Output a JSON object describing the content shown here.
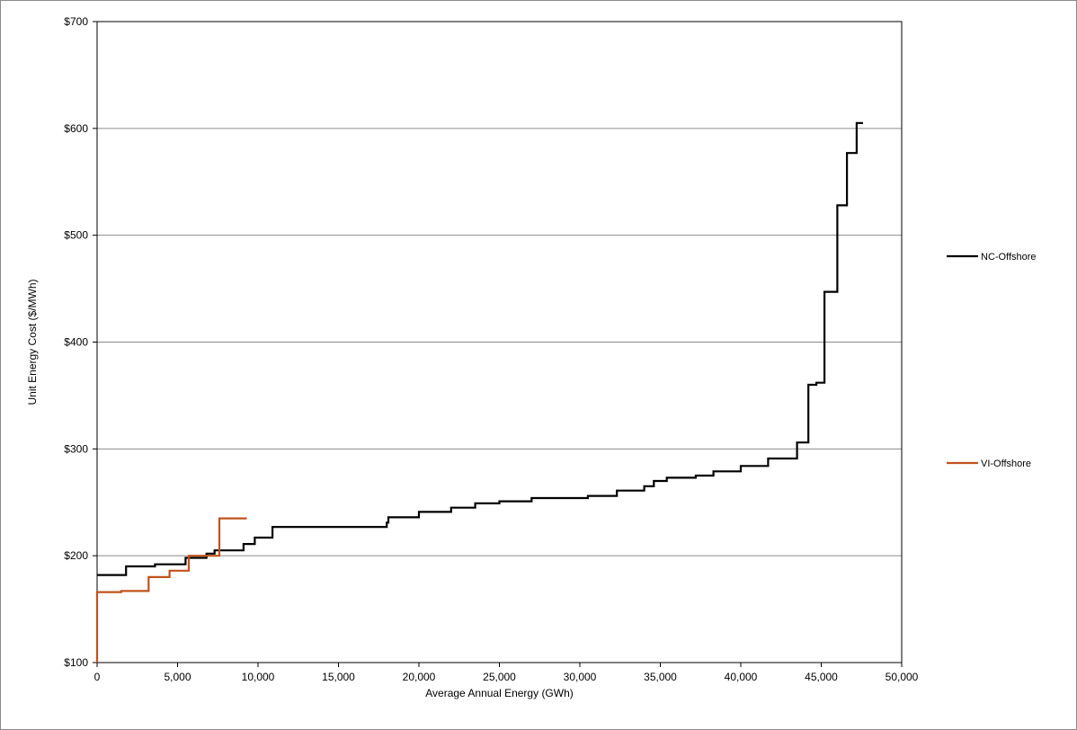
{
  "chart_data": {
    "type": "line",
    "step": true,
    "xlabel": "Average Annual Energy (GWh)",
    "ylabel": "Unit Energy Cost ($/MWh)",
    "xlim": [
      0,
      50000
    ],
    "ylim": [
      100,
      700
    ],
    "x_ticks": [
      0,
      5000,
      10000,
      15000,
      20000,
      25000,
      30000,
      35000,
      40000,
      45000,
      50000
    ],
    "x_tick_labels": [
      "0",
      "5,000",
      "10,000",
      "15,000",
      "20,000",
      "25,000",
      "30,000",
      "35,000",
      "40,000",
      "45,000",
      "50,000"
    ],
    "y_ticks": [
      100,
      200,
      300,
      400,
      500,
      600,
      700
    ],
    "y_tick_labels": [
      "$100",
      "$200",
      "$300",
      "$400",
      "$500",
      "$600",
      "$700"
    ],
    "grid": "horizontal",
    "legend_position": "right",
    "series": [
      {
        "name": "NC-Offshore",
        "color": "#000000",
        "points": [
          [
            0,
            182
          ],
          [
            1800,
            182
          ],
          [
            1800,
            190
          ],
          [
            3600,
            190
          ],
          [
            3600,
            192
          ],
          [
            5500,
            192
          ],
          [
            5500,
            198
          ],
          [
            6800,
            198
          ],
          [
            6800,
            202
          ],
          [
            7300,
            202
          ],
          [
            7300,
            205
          ],
          [
            9100,
            205
          ],
          [
            9100,
            211
          ],
          [
            9800,
            211
          ],
          [
            9800,
            217
          ],
          [
            10900,
            217
          ],
          [
            10900,
            227
          ],
          [
            18000,
            227
          ],
          [
            18000,
            231
          ],
          [
            18100,
            231
          ],
          [
            18100,
            236
          ],
          [
            20000,
            236
          ],
          [
            20000,
            241
          ],
          [
            22000,
            241
          ],
          [
            22000,
            245
          ],
          [
            23500,
            245
          ],
          [
            23500,
            249
          ],
          [
            25000,
            249
          ],
          [
            25000,
            251
          ],
          [
            27000,
            251
          ],
          [
            27000,
            254
          ],
          [
            30500,
            254
          ],
          [
            30500,
            256
          ],
          [
            32300,
            256
          ],
          [
            32300,
            261
          ],
          [
            34000,
            261
          ],
          [
            34000,
            265
          ],
          [
            34600,
            265
          ],
          [
            34600,
            270
          ],
          [
            35400,
            270
          ],
          [
            35400,
            273
          ],
          [
            37200,
            273
          ],
          [
            37200,
            275
          ],
          [
            38300,
            275
          ],
          [
            38300,
            279
          ],
          [
            40000,
            279
          ],
          [
            40000,
            284
          ],
          [
            41700,
            284
          ],
          [
            41700,
            291
          ],
          [
            43500,
            291
          ],
          [
            43500,
            306
          ],
          [
            44200,
            306
          ],
          [
            44200,
            360
          ],
          [
            44700,
            360
          ],
          [
            44700,
            362
          ],
          [
            45200,
            362
          ],
          [
            45200,
            447
          ],
          [
            46000,
            447
          ],
          [
            46000,
            528
          ],
          [
            46600,
            528
          ],
          [
            46600,
            577
          ],
          [
            47200,
            577
          ],
          [
            47200,
            605
          ],
          [
            47600,
            605
          ]
        ]
      },
      {
        "name": "VI-Offshore",
        "color": "#c0531c",
        "points": [
          [
            0,
            100
          ],
          [
            0,
            166
          ],
          [
            1500,
            166
          ],
          [
            1500,
            167
          ],
          [
            3200,
            167
          ],
          [
            3200,
            180
          ],
          [
            4500,
            180
          ],
          [
            4500,
            186
          ],
          [
            5700,
            186
          ],
          [
            5700,
            200
          ],
          [
            7600,
            200
          ],
          [
            7600,
            235
          ],
          [
            9300,
            235
          ]
        ]
      }
    ]
  }
}
